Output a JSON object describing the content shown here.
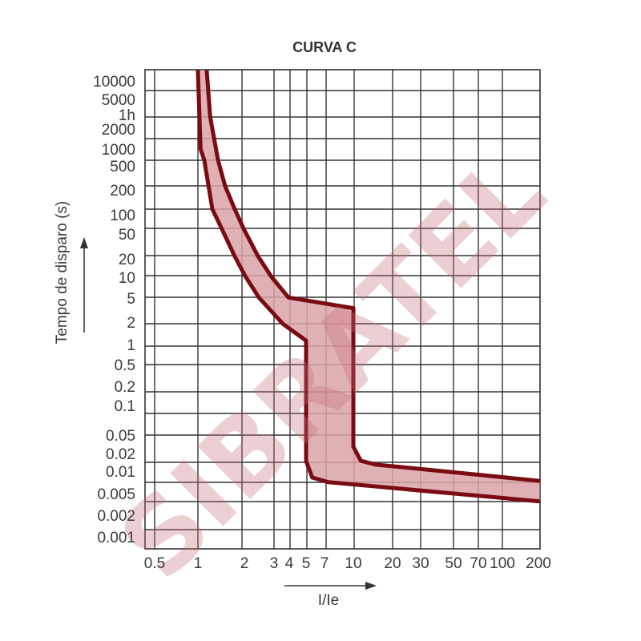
{
  "chart_data": {
    "type": "area",
    "title": "CURVA C",
    "xlabel": "I/Ie",
    "ylabel": "Tempo de disparo (s)",
    "x_ticks": [
      {
        "label": "0.5",
        "value": 0.5
      },
      {
        "label": "1",
        "value": 1
      },
      {
        "label": "2",
        "value": 2
      },
      {
        "label": "3",
        "value": 3
      },
      {
        "label": "4",
        "value": 4
      },
      {
        "label": "5",
        "value": 5
      },
      {
        "label": "7",
        "value": 7
      },
      {
        "label": "10",
        "value": 10
      },
      {
        "label": "20",
        "value": 20
      },
      {
        "label": "30",
        "value": 30
      },
      {
        "label": "50",
        "value": 50
      },
      {
        "label": "70",
        "value": 70
      },
      {
        "label": "100",
        "value": 100
      },
      {
        "label": "200",
        "value": 200
      }
    ],
    "y_ticks": [
      {
        "label": "10000",
        "value": 10000
      },
      {
        "label": "5000",
        "value": 5000
      },
      {
        "label": "1h",
        "value": 3600
      },
      {
        "label": "2000",
        "value": 2000
      },
      {
        "label": "1000",
        "value": 1000
      },
      {
        "label": "500",
        "value": 500
      },
      {
        "label": "200",
        "value": 200
      },
      {
        "label": "100",
        "value": 100
      },
      {
        "label": "50",
        "value": 50
      },
      {
        "label": "20",
        "value": 20
      },
      {
        "label": "10",
        "value": 10
      },
      {
        "label": "5",
        "value": 5
      },
      {
        "label": "2",
        "value": 2
      },
      {
        "label": "1",
        "value": 1
      },
      {
        "label": "0.5",
        "value": 0.5
      },
      {
        "label": "0.2",
        "value": 0.2
      },
      {
        "label": "0.1",
        "value": 0.1
      },
      {
        "label": "0.05",
        "value": 0.05
      },
      {
        "label": "0.02",
        "value": 0.02
      },
      {
        "label": "0.01",
        "value": 0.01
      },
      {
        "label": "0.005",
        "value": 0.005
      },
      {
        "label": "0.002",
        "value": 0.002
      },
      {
        "label": "0.001",
        "value": 0.001
      }
    ],
    "grid": true,
    "series": [
      {
        "role": "upper-bound",
        "points": [
          [
            1.14,
            15000
          ],
          [
            1.2,
            3300
          ],
          [
            1.35,
            630
          ],
          [
            1.5,
            233
          ],
          [
            1.73,
            117
          ],
          [
            1.98,
            60
          ],
          [
            2.41,
            22
          ],
          [
            2.87,
            10.5
          ],
          [
            3.94,
            5.1
          ],
          [
            10,
            3.4
          ],
          [
            10,
            0.028
          ],
          [
            11.4,
            0.015
          ],
          [
            14.7,
            0.013
          ],
          [
            205,
            0.0074
          ]
        ]
      },
      {
        "role": "lower-bound",
        "points": [
          [
            1.0,
            15000
          ],
          [
            1.04,
            1000
          ],
          [
            1.1,
            630
          ],
          [
            1.24,
            117
          ],
          [
            1.43,
            60
          ],
          [
            1.73,
            22
          ],
          [
            2.02,
            10.5
          ],
          [
            2.44,
            5.1
          ],
          [
            3.54,
            1.9
          ],
          [
            5,
            1.13
          ],
          [
            5,
            0.015
          ],
          [
            5.6,
            0.0082
          ],
          [
            7.35,
            0.0071
          ],
          [
            205,
            0.0036
          ]
        ]
      }
    ],
    "colors": {
      "line": "#7a0b12",
      "band": "#d9a3a8",
      "grid": "#333333"
    }
  },
  "watermark": "SIBRATEL"
}
